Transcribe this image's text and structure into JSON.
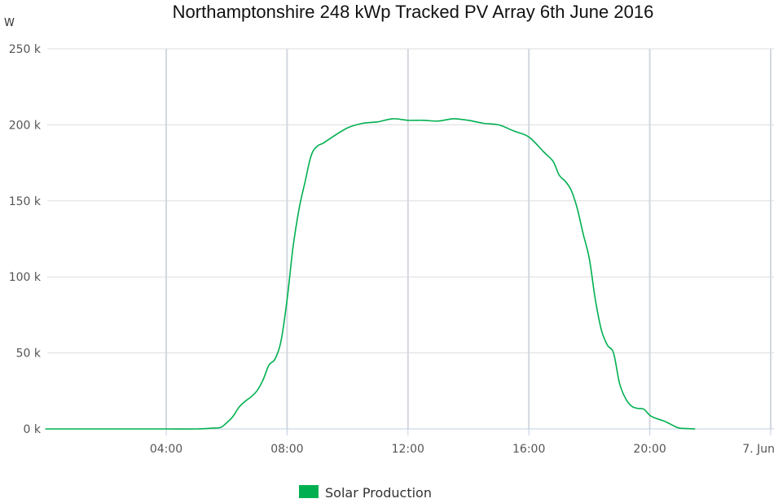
{
  "chart_data": {
    "type": "line",
    "title": "Northamptonshire 248 kWp Tracked PV Array 6th June 2016",
    "ylabel": "W",
    "xlabel": "",
    "xlim": [
      0,
      24
    ],
    "ylim": [
      0,
      250000
    ],
    "grid": true,
    "legend_position": "bottom-center",
    "y_ticks": [
      {
        "value": 0,
        "label": "0 k"
      },
      {
        "value": 50000,
        "label": "50 k"
      },
      {
        "value": 100000,
        "label": "100 k"
      },
      {
        "value": 150000,
        "label": "150 k"
      },
      {
        "value": 200000,
        "label": "200 k"
      },
      {
        "value": 250000,
        "label": "250 k"
      }
    ],
    "x_ticks": [
      {
        "value": 4,
        "label": "04:00"
      },
      {
        "value": 8,
        "label": "08:00"
      },
      {
        "value": 12,
        "label": "12:00"
      },
      {
        "value": 16,
        "label": "16:00"
      },
      {
        "value": 20,
        "label": "20:00"
      },
      {
        "value": 24,
        "label": "7. Jun"
      }
    ],
    "series": [
      {
        "name": "Solar Production",
        "color": "#00b050",
        "legend_color": "#00b050",
        "points": [
          [
            0,
            0
          ],
          [
            1,
            0
          ],
          [
            2,
            0
          ],
          [
            3,
            0
          ],
          [
            4,
            0
          ],
          [
            5,
            0
          ],
          [
            5.5,
            500
          ],
          [
            5.8,
            1000
          ],
          [
            6.0,
            4000
          ],
          [
            6.2,
            8000
          ],
          [
            6.4,
            14000
          ],
          [
            6.6,
            18000
          ],
          [
            6.8,
            21000
          ],
          [
            7.0,
            25000
          ],
          [
            7.2,
            32000
          ],
          [
            7.4,
            42000
          ],
          [
            7.6,
            46000
          ],
          [
            7.8,
            58000
          ],
          [
            8.0,
            85000
          ],
          [
            8.2,
            120000
          ],
          [
            8.4,
            145000
          ],
          [
            8.6,
            163000
          ],
          [
            8.8,
            180000
          ],
          [
            9.0,
            186000
          ],
          [
            9.2,
            188000
          ],
          [
            9.5,
            192000
          ],
          [
            10.0,
            198000
          ],
          [
            10.5,
            201000
          ],
          [
            11.0,
            202000
          ],
          [
            11.5,
            204000
          ],
          [
            12.0,
            203000
          ],
          [
            12.5,
            203000
          ],
          [
            13.0,
            202500
          ],
          [
            13.5,
            204000
          ],
          [
            14.0,
            203000
          ],
          [
            14.5,
            201000
          ],
          [
            15.0,
            200000
          ],
          [
            15.5,
            196000
          ],
          [
            16.0,
            192000
          ],
          [
            16.5,
            182000
          ],
          [
            16.8,
            176000
          ],
          [
            17.0,
            167000
          ],
          [
            17.2,
            163000
          ],
          [
            17.4,
            157000
          ],
          [
            17.6,
            145000
          ],
          [
            17.8,
            128000
          ],
          [
            18.0,
            112000
          ],
          [
            18.2,
            85000
          ],
          [
            18.4,
            65000
          ],
          [
            18.6,
            55000
          ],
          [
            18.8,
            50000
          ],
          [
            19.0,
            30000
          ],
          [
            19.2,
            20000
          ],
          [
            19.4,
            15000
          ],
          [
            19.6,
            13500
          ],
          [
            19.8,
            13000
          ],
          [
            20.0,
            9000
          ],
          [
            20.2,
            7000
          ],
          [
            20.5,
            5000
          ],
          [
            20.8,
            2000
          ],
          [
            21.0,
            500
          ],
          [
            21.5,
            0
          ]
        ]
      }
    ]
  }
}
